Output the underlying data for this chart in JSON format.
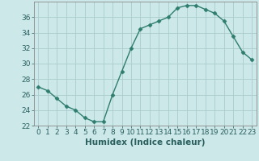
{
  "x": [
    0,
    1,
    2,
    3,
    4,
    5,
    6,
    7,
    8,
    9,
    10,
    11,
    12,
    13,
    14,
    15,
    16,
    17,
    18,
    19,
    20,
    21,
    22,
    23
  ],
  "y": [
    27,
    26.5,
    25.5,
    24.5,
    24,
    23,
    22.5,
    22.5,
    26,
    29,
    32,
    34.5,
    35,
    35.5,
    36,
    37.2,
    37.5,
    37.5,
    37,
    36.5,
    35.5,
    33.5,
    31.5,
    30.5
  ],
  "line_color": "#2e7d6e",
  "marker": "D",
  "marker_size": 2.5,
  "bg_color": "#cce8e8",
  "grid_color": "#aacccc",
  "xlabel": "Humidex (Indice chaleur)",
  "ylim": [
    22,
    38
  ],
  "xlim": [
    -0.5,
    23.5
  ],
  "yticks": [
    22,
    24,
    26,
    28,
    30,
    32,
    34,
    36
  ],
  "xticks": [
    0,
    1,
    2,
    3,
    4,
    5,
    6,
    7,
    8,
    9,
    10,
    11,
    12,
    13,
    14,
    15,
    16,
    17,
    18,
    19,
    20,
    21,
    22,
    23
  ],
  "tick_fontsize": 6.5,
  "label_fontsize": 7.5
}
